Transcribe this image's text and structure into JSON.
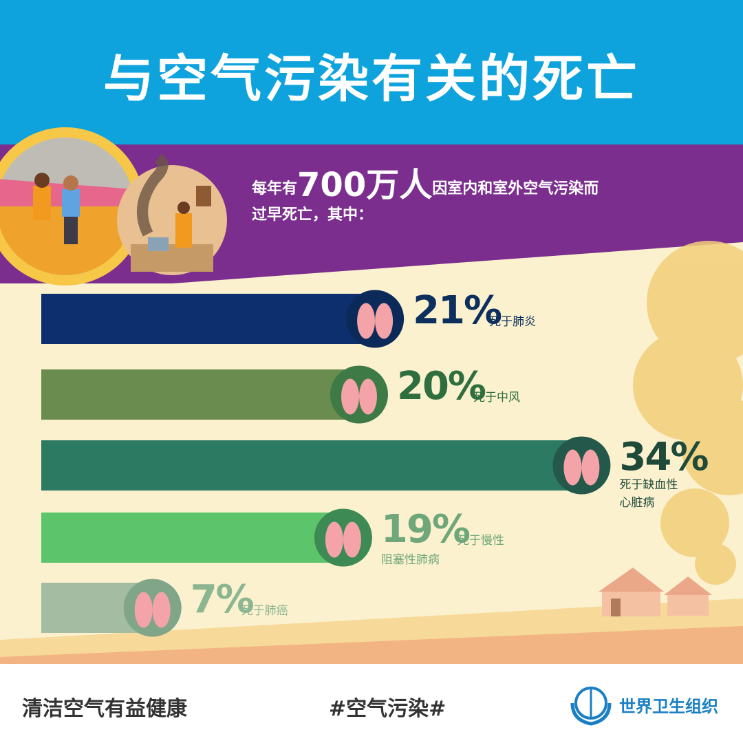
{
  "title": "与空气污染有关的死亡",
  "intro": {
    "prefix": "每年有",
    "number": "700万人",
    "suffix": "因室内和室外空气污染而",
    "line2": "过早死亡，其中："
  },
  "colors": {
    "sky": "#0ea3dc",
    "purple": "#7b2e8e",
    "cream": "#fbf1cf",
    "ground": "#f2b482"
  },
  "chart_data": {
    "type": "bar",
    "orientation": "horizontal",
    "categories": [
      "死于肺炎",
      "死于中风",
      "死于缺血性心脏病",
      "死于慢性阻塞性肺病",
      "死于肺癌"
    ],
    "values": [
      21,
      20,
      34,
      19,
      7
    ],
    "value_labels": [
      "21%",
      "20%",
      "34%",
      "19%",
      "7%"
    ],
    "label_lines": [
      [
        "死于肺炎"
      ],
      [
        "死于中风"
      ],
      [
        "死于缺血性",
        "心脏病"
      ],
      [
        "死于慢性",
        "阻塞性肺病"
      ],
      [
        "死于肺癌"
      ]
    ],
    "icons": [
      "lungs-icon",
      "brain-icon",
      "heart-icon",
      "lungs-icon",
      "lung-cancer-icon"
    ],
    "bar_colors": [
      "#0d2f6e",
      "#6a8c4e",
      "#2d7a62",
      "#5cc46a",
      "#a3bca2"
    ],
    "circle_colors": [
      "#0b2a5a",
      "#3e7a45",
      "#23584a",
      "#3e8a55",
      "#80a588"
    ],
    "text_colors": [
      "#0d2f5e",
      "#2f6e3e",
      "#1f4a3a",
      "#6fa77a",
      "#8cb592"
    ]
  },
  "footer": {
    "slogan": "清洁空气有益健康",
    "hashtag": "#空气污染#",
    "org": "世界卫生组织"
  }
}
